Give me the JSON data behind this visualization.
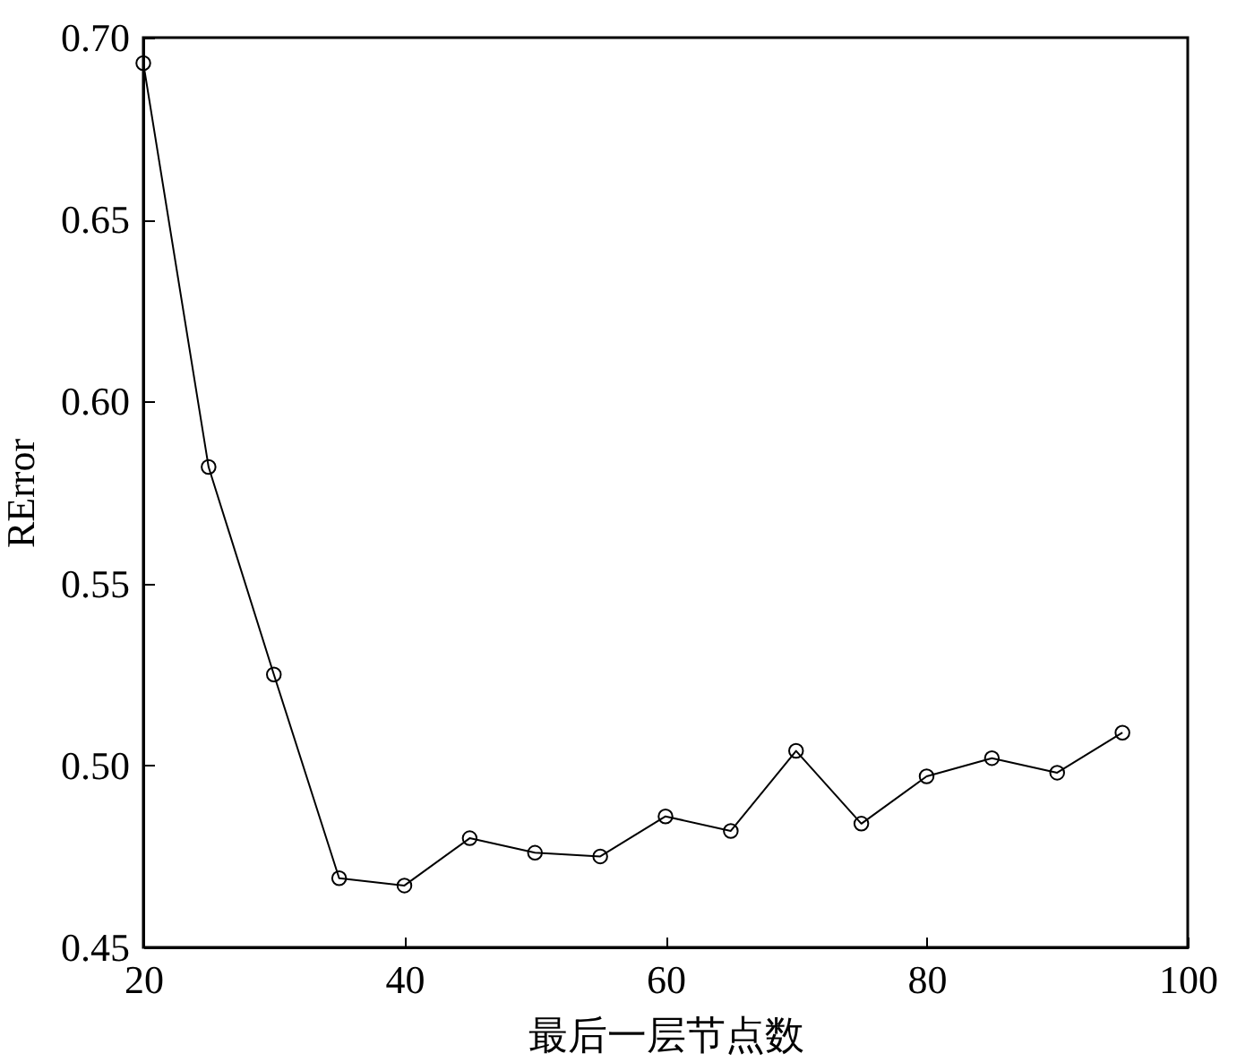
{
  "chart_data": {
    "type": "line",
    "xlabel": "最后一层节点数",
    "ylabel": "RError",
    "x": [
      20,
      25,
      30,
      35,
      40,
      45,
      50,
      55,
      60,
      65,
      70,
      75,
      80,
      85,
      90,
      95
    ],
    "series": [
      {
        "color": "#000000",
        "values": [
          0.693,
          0.582,
          0.525,
          0.469,
          0.467,
          0.48,
          0.476,
          0.475,
          0.486,
          0.482,
          0.504,
          0.484,
          0.497,
          0.502,
          0.498,
          0.509
        ]
      }
    ],
    "xlim": [
      20,
      100
    ],
    "xticks": [
      20,
      40,
      60,
      80,
      100
    ],
    "ylim": [
      0.45,
      0.7
    ],
    "yticks": [
      0.45,
      {
        "value": 0.5,
        "label": "0.50"
      },
      0.55,
      {
        "value": 0.6,
        "label": "0.60"
      },
      0.65,
      {
        "value": 0.7,
        "label": "0.70"
      }
    ],
    "marker": "circle",
    "line_style": "solid",
    "grid": false,
    "legend": false
  }
}
